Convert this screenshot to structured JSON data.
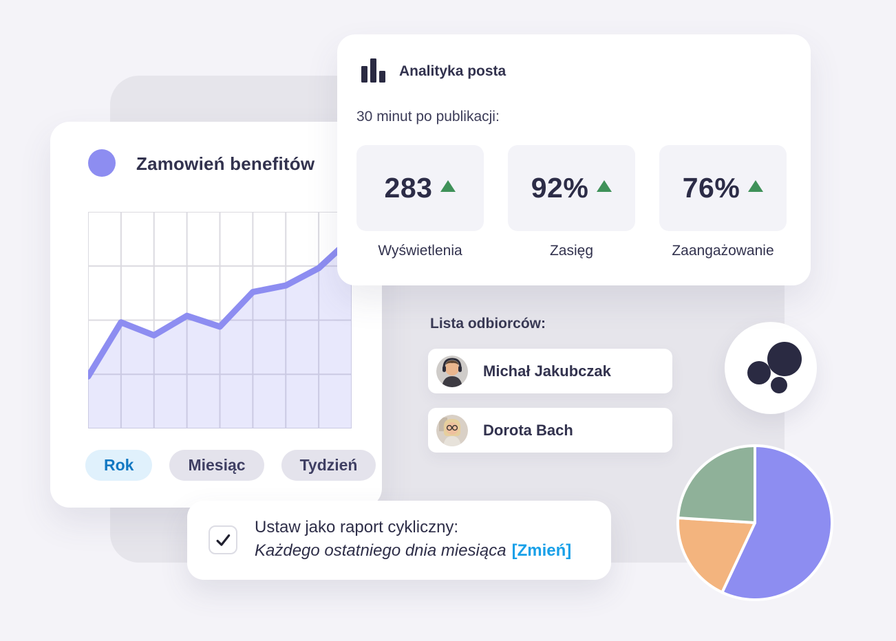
{
  "colors": {
    "page_background": "#f4f3f8",
    "panel_background": "#e6e5eb",
    "accent_purple": "#8d8df1",
    "text_navy": "#32324e",
    "trend_green": "#3f9159",
    "link_blue": "#18a0e8",
    "active_button_bg": "#e0f1fc",
    "active_button_text": "#1278c2"
  },
  "orders_card": {
    "title": "Zamowień benefitów",
    "legend_color": "#8d8df1",
    "buttons": [
      {
        "label": "Rok",
        "active": true
      },
      {
        "label": "Miesiąc",
        "active": false
      },
      {
        "label": "Tydzień",
        "active": false
      }
    ]
  },
  "analytics_card": {
    "title": "Analityka posta",
    "subtitle": "30 minut po publikacji:",
    "icon": "bar-chart-icon",
    "stats": [
      {
        "value": "283",
        "label": "Wyświetlenia",
        "trend": "up"
      },
      {
        "value": "92%",
        "label": "Zasięg",
        "trend": "up"
      },
      {
        "value": "76%",
        "label": "Zaangażowanie",
        "trend": "up"
      }
    ]
  },
  "recipients": {
    "heading": "Lista odbiorców:",
    "items": [
      {
        "name": "Michał Jakubczak"
      },
      {
        "name": "Dorota Bach"
      }
    ]
  },
  "report_card": {
    "checked": true,
    "line1": "Ustaw jako raport cykliczny:",
    "line2_italic": "Każdego ostatniego dnia miesiąca",
    "change_link": "[Zmień]"
  },
  "chart_data": [
    {
      "type": "area",
      "title": "Zamowień benefitów",
      "x": [
        0,
        1,
        2,
        3,
        4,
        5,
        6,
        7,
        8
      ],
      "values": [
        24,
        49,
        43,
        52,
        47,
        63,
        66,
        74,
        88
      ],
      "ylim": [
        0,
        100
      ],
      "grid": {
        "cols": 8,
        "rows": 4,
        "visible": true
      },
      "line_color": "#8d8df1",
      "fill_color": "rgba(141,141,241,0.20)",
      "grid_color": "#dbdae0",
      "tick_labels": "none",
      "legend_position": "top-left"
    },
    {
      "type": "pie",
      "start_angle_deg": 0,
      "slices": [
        {
          "label": "segment-1",
          "value": 57,
          "color": "#8d8df1"
        },
        {
          "label": "segment-2",
          "value": 19,
          "color": "#f3b47e"
        },
        {
          "label": "segment-3",
          "value": 24,
          "color": "#8fb199"
        }
      ],
      "gap_color": "#ffffff",
      "legend_position": "none"
    }
  ]
}
